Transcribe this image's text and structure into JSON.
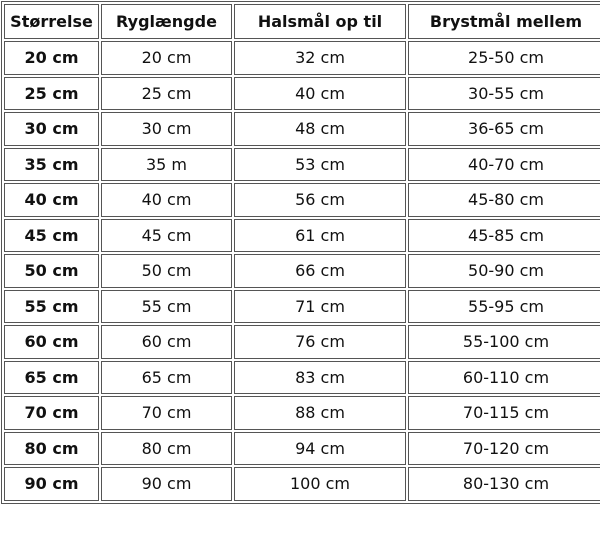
{
  "table": {
    "headers": [
      "Størrelse",
      "Ryglængde",
      "Halsmål op til",
      "Brystmål mellem"
    ],
    "rows": [
      [
        "20 cm",
        "20 cm",
        "32 cm",
        "25-50 cm"
      ],
      [
        "25 cm",
        "25 cm",
        "40 cm",
        "30-55 cm"
      ],
      [
        "30 cm",
        "30 cm",
        "48 cm",
        "36-65 cm"
      ],
      [
        "35 cm",
        "35 m",
        "53 cm",
        "40-70 cm"
      ],
      [
        "40 cm",
        "40 cm",
        "56 cm",
        "45-80 cm"
      ],
      [
        "45 cm",
        "45 cm",
        "61 cm",
        "45-85 cm"
      ],
      [
        "50 cm",
        "50 cm",
        "66 cm",
        "50-90 cm"
      ],
      [
        "55 cm",
        "55 cm",
        "71 cm",
        "55-95 cm"
      ],
      [
        "60 cm",
        "60 cm",
        "76 cm",
        "55-100 cm"
      ],
      [
        "65 cm",
        "65 cm",
        "83 cm",
        "60-110 cm"
      ],
      [
        "70 cm",
        "70 cm",
        "88 cm",
        "70-115 cm"
      ],
      [
        "80 cm",
        "80 cm",
        "94 cm",
        "70-120 cm"
      ],
      [
        "90 cm",
        "90 cm",
        "100 cm",
        "80-130 cm"
      ]
    ]
  }
}
